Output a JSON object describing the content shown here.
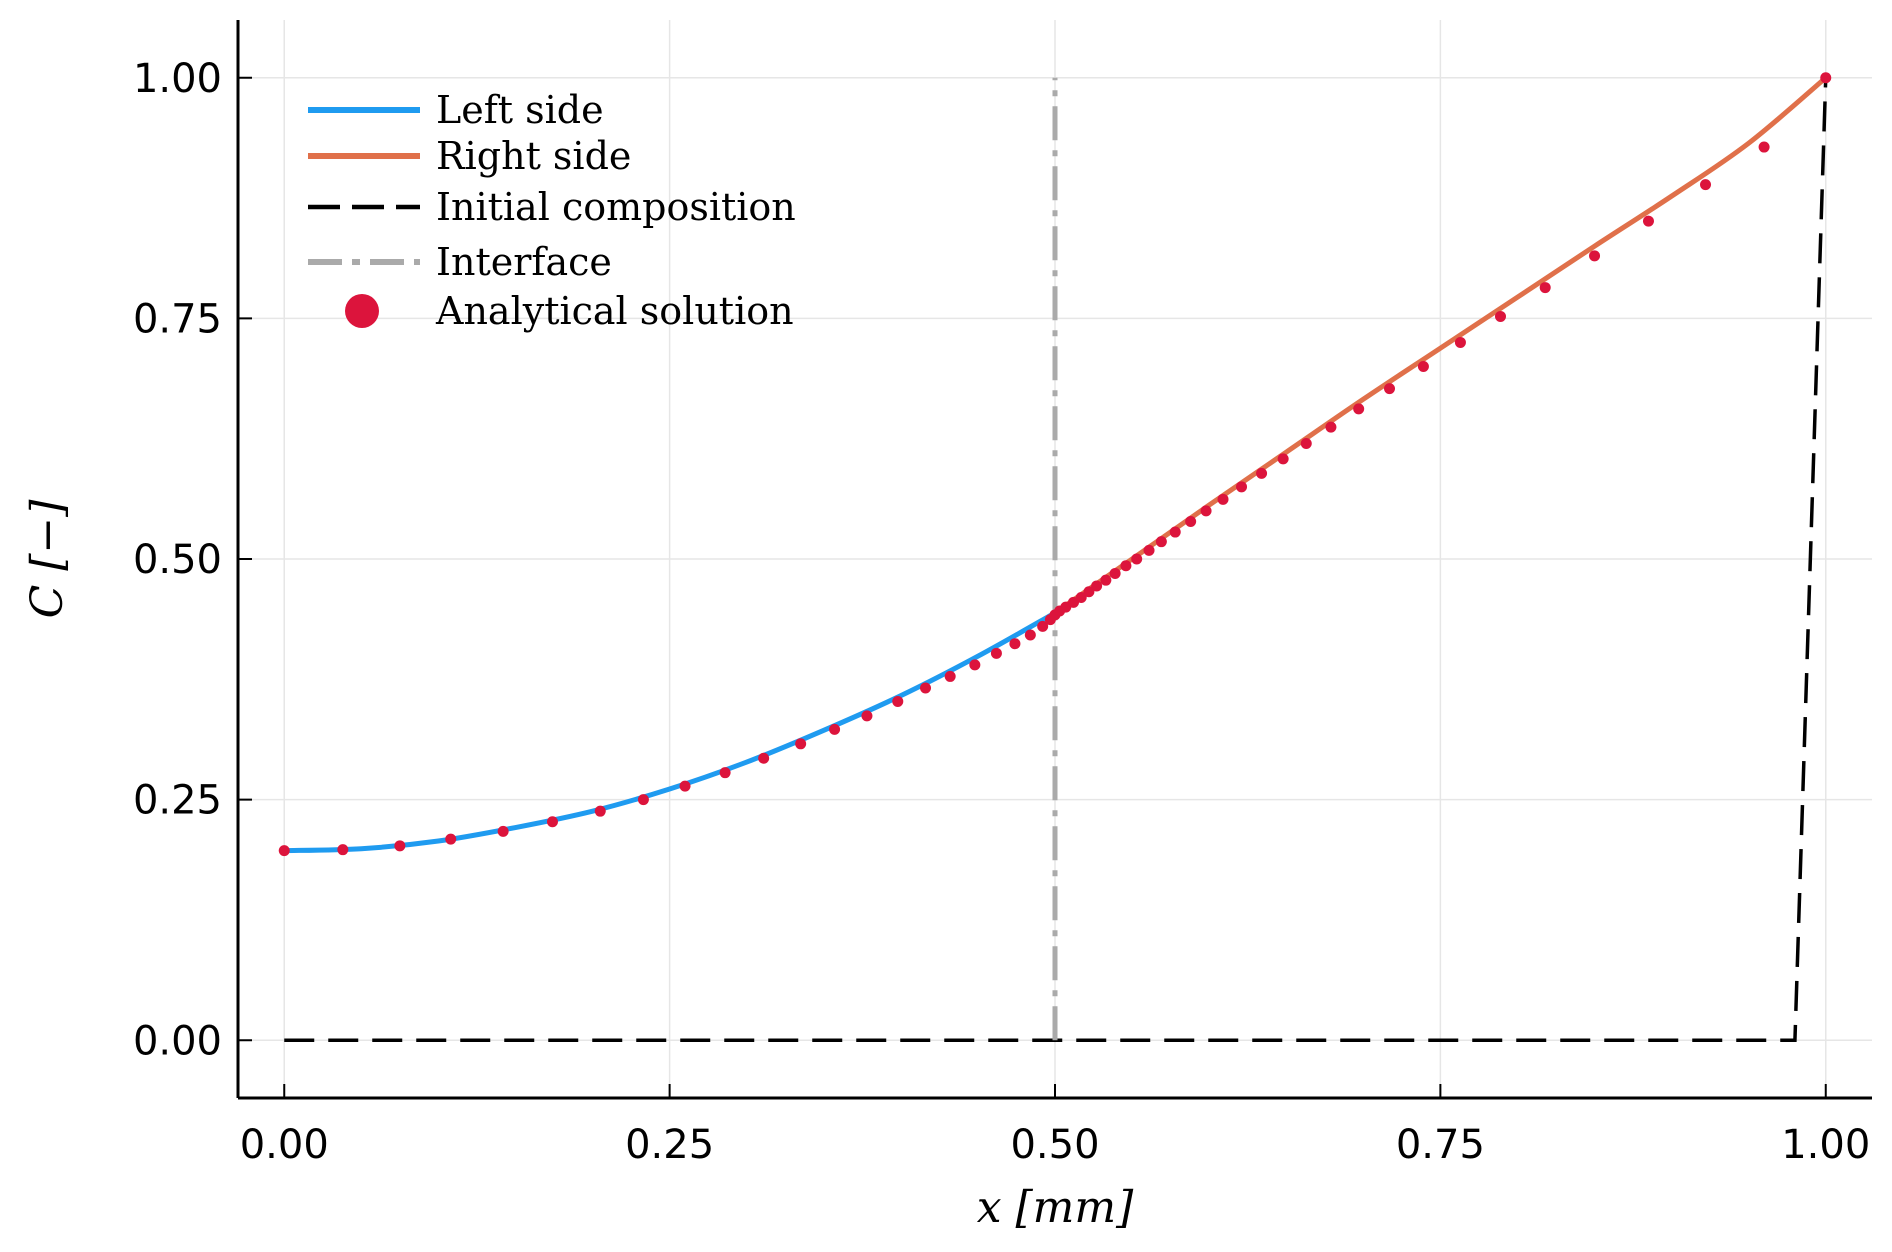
{
  "chart_data": {
    "type": "line",
    "xlabel": "x [mm]",
    "ylabel": "C [−]",
    "xlim": [
      -0.03,
      1.03
    ],
    "ylim": [
      -0.06,
      1.06
    ],
    "xticks": [
      0.0,
      0.25,
      0.5,
      0.75,
      1.0
    ],
    "xtick_labels": [
      "0.00",
      "0.25",
      "0.50",
      "0.75",
      "1.00"
    ],
    "yticks": [
      0.0,
      0.25,
      0.5,
      0.75,
      1.0
    ],
    "ytick_labels": [
      "0.00",
      "0.25",
      "0.50",
      "0.75",
      "1.00"
    ],
    "grid": true,
    "legend_position": "top-left",
    "series": [
      {
        "name": "Left side",
        "kind": "line",
        "color": "#1f9bf0",
        "x": [
          0.0,
          0.05,
          0.1,
          0.15,
          0.2,
          0.25,
          0.3,
          0.35,
          0.4,
          0.45,
          0.5
        ],
        "y": [
          0.197,
          0.199,
          0.207,
          0.221,
          0.238,
          0.261,
          0.289,
          0.322,
          0.358,
          0.399,
          0.444
        ]
      },
      {
        "name": "Right side",
        "kind": "line",
        "color": "#e0704a",
        "x": [
          0.5,
          0.55,
          0.6,
          0.65,
          0.7,
          0.75,
          0.8,
          0.85,
          0.9,
          0.95,
          1.0
        ],
        "y": [
          0.444,
          0.5,
          0.556,
          0.611,
          0.666,
          0.719,
          0.772,
          0.825,
          0.877,
          0.932,
          1.0
        ]
      },
      {
        "name": "Initial composition",
        "kind": "dashed-line",
        "color": "#000000",
        "x": [
          0.0,
          0.98,
          1.0
        ],
        "y": [
          0.0,
          0.0,
          1.0
        ]
      },
      {
        "name": "Interface",
        "kind": "dashdot-line",
        "color": "#aaaaaa",
        "x": [
          0.5,
          0.5
        ],
        "y": [
          0.0,
          1.0
        ]
      },
      {
        "name": "Analytical solution",
        "kind": "scatter",
        "color": "#dc143c",
        "x": [
          0.0,
          0.038,
          0.075,
          0.108,
          0.142,
          0.174,
          0.205,
          0.233,
          0.26,
          0.286,
          0.311,
          0.335,
          0.357,
          0.378,
          0.398,
          0.416,
          0.432,
          0.448,
          0.462,
          0.474,
          0.484,
          0.492,
          0.497,
          0.5,
          0.503,
          0.507,
          0.512,
          0.517,
          0.522,
          0.527,
          0.533,
          0.539,
          0.546,
          0.553,
          0.561,
          0.569,
          0.578,
          0.588,
          0.598,
          0.609,
          0.621,
          0.634,
          0.648,
          0.663,
          0.679,
          0.697,
          0.717,
          0.739,
          0.763,
          0.789,
          0.818,
          0.85,
          0.885,
          0.922,
          0.96,
          1.0
        ],
        "y": [
          0.197,
          0.198,
          0.202,
          0.209,
          0.217,
          0.227,
          0.238,
          0.25,
          0.264,
          0.278,
          0.293,
          0.308,
          0.323,
          0.337,
          0.352,
          0.366,
          0.378,
          0.39,
          0.402,
          0.412,
          0.421,
          0.43,
          0.437,
          0.442,
          0.446,
          0.45,
          0.455,
          0.46,
          0.466,
          0.472,
          0.478,
          0.485,
          0.493,
          0.5,
          0.509,
          0.518,
          0.528,
          0.539,
          0.55,
          0.562,
          0.575,
          0.589,
          0.604,
          0.62,
          0.637,
          0.656,
          0.677,
          0.7,
          0.725,
          0.752,
          0.782,
          0.815,
          0.851,
          0.889,
          0.928,
          1.0
        ]
      }
    ]
  }
}
